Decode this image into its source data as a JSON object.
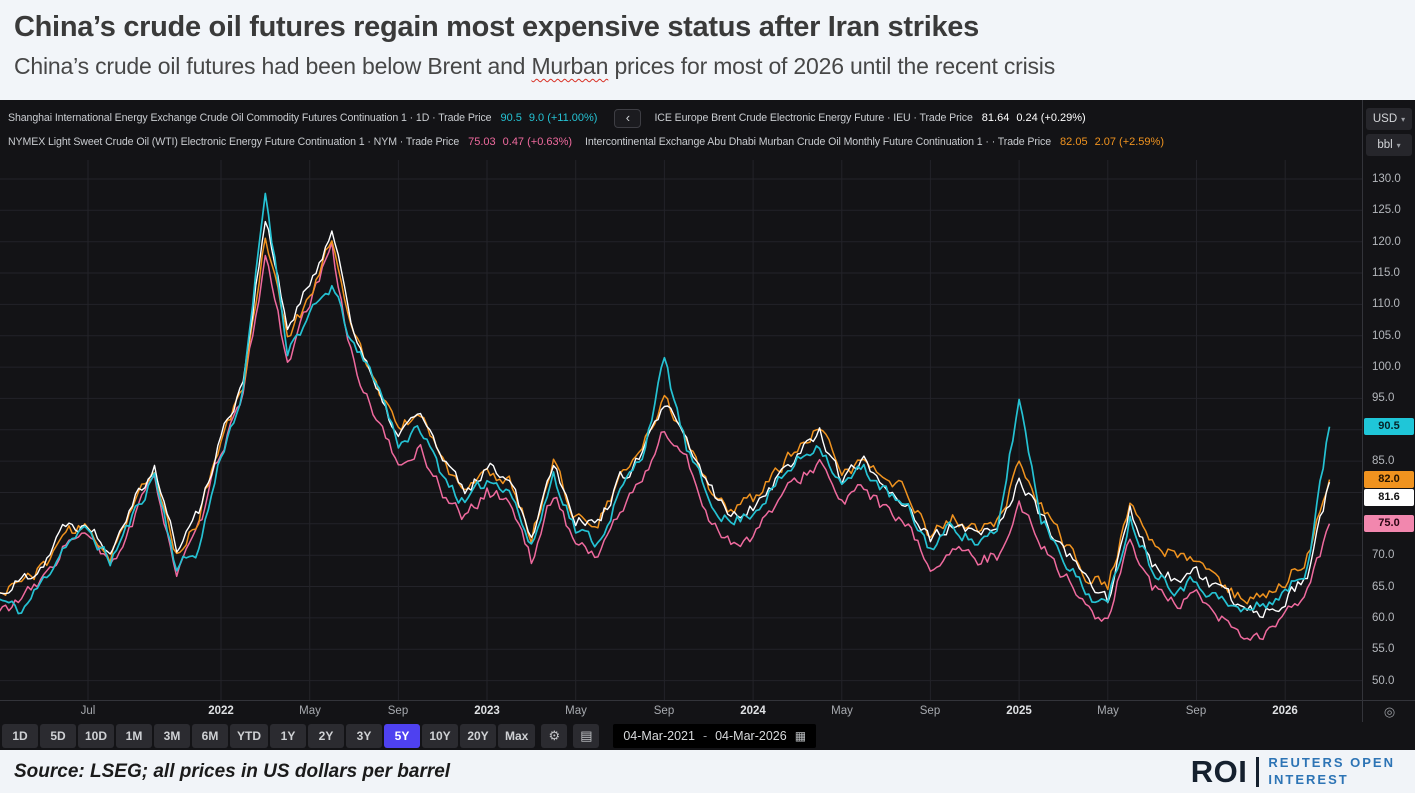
{
  "header": {
    "title": "China’s crude oil futures regain most expensive status after Iran strikes",
    "subtitle_prefix": "China’s crude oil futures had been below Brent and ",
    "subtitle_murban": "Murban",
    "subtitle_suffix": " prices for most of 2026 until the recent crisis"
  },
  "legend": {
    "items": [
      {
        "description": "Shanghai International Energy Exchange Crude Oil Commodity Futures Continuation 1 · 1D · Trade Price",
        "price": "90.5",
        "change": "9.0 (+11.00%)"
      },
      {
        "description": "ICE Europe Brent Crude Electronic Energy Future · IEU · Trade Price",
        "price": "81.64",
        "change": "0.24 (+0.29%)"
      },
      {
        "description": "NYMEX Light Sweet Crude Oil (WTI) Electronic Energy Future Continuation 1 · NYM · Trade Price",
        "price": "75.03",
        "change": "0.47 (+0.63%)"
      },
      {
        "description": "Intercontinental Exchange Abu Dhabi Murban Crude Oil Monthly Future Continuation 1 · · Trade Price",
        "price": "82.05",
        "change": "2.07 (+2.59%)"
      }
    ]
  },
  "axis": {
    "currency": "USD",
    "unit": "bbl"
  },
  "icons": {
    "collapse": "‹",
    "dropdown": "▾",
    "gear": "⚙",
    "sheet": "▤",
    "target": "◎",
    "calendar": "▦"
  },
  "toolbar": {
    "ranges": [
      "1D",
      "5D",
      "10D",
      "1M",
      "3M",
      "6M",
      "YTD",
      "1Y",
      "2Y",
      "3Y",
      "5Y",
      "10Y",
      "20Y",
      "Max"
    ],
    "selected": "5Y",
    "selected_color": "#4e41f0",
    "date_from": "04-Mar-2021",
    "date_to": "04-Mar-2026"
  },
  "chart_data": {
    "type": "line",
    "title": "China’s crude oil futures regain most expensive status after Iran strikes",
    "xlabel": "",
    "ylabel": "USD per barrel",
    "grid": true,
    "legend_position": "top-left",
    "ylim": [
      50,
      132
    ],
    "x_range": [
      "04-Mar-2021",
      "04-Mar-2026"
    ],
    "x": [
      "2021-03",
      "2021-04",
      "2021-05",
      "2021-06",
      "2021-07",
      "2021-08",
      "2021-09",
      "2021-10",
      "2021-11",
      "2021-12",
      "2022-01",
      "2022-02",
      "2022-03",
      "2022-04",
      "2022-05",
      "2022-06",
      "2022-07",
      "2022-08",
      "2022-09",
      "2022-10",
      "2022-11",
      "2022-12",
      "2023-01",
      "2023-02",
      "2023-03",
      "2023-04",
      "2023-05",
      "2023-06",
      "2023-07",
      "2023-08",
      "2023-09",
      "2023-10",
      "2023-11",
      "2023-12",
      "2024-01",
      "2024-02",
      "2024-03",
      "2024-04",
      "2024-05",
      "2024-06",
      "2024-07",
      "2024-08",
      "2024-09",
      "2024-10",
      "2024-11",
      "2024-12",
      "2025-01",
      "2025-02",
      "2025-03",
      "2025-04",
      "2025-05",
      "2025-06",
      "2025-07",
      "2025-08",
      "2025-09",
      "2025-10",
      "2025-11",
      "2025-12",
      "2026-01",
      "2026-02",
      "2026-03"
    ],
    "series": [
      {
        "name": "Shanghai INE crude oil futures",
        "color": "#25c2d3",
        "last_price": 90.5,
        "values": [
          63,
          61,
          66,
          72,
          74,
          69,
          76,
          83,
          68,
          71,
          86,
          96,
          128,
          103,
          108,
          113,
          103,
          98,
          88,
          90,
          83,
          78,
          82,
          81,
          71,
          83,
          74,
          72,
          80,
          86,
          101,
          87,
          79,
          75,
          77,
          81,
          85,
          88,
          81,
          84,
          80,
          77,
          71,
          75,
          72,
          73,
          95,
          76,
          70,
          64,
          62,
          76,
          68,
          65,
          66,
          63,
          61,
          62,
          64,
          68,
          90.5
        ]
      },
      {
        "name": "ICE Brent crude",
        "color": "#ffffff",
        "last_price": 81.64,
        "values": [
          64,
          66,
          69,
          75,
          75,
          71,
          79,
          84,
          71,
          77,
          89,
          98,
          124,
          106,
          113,
          122,
          106,
          96,
          89,
          93,
          85,
          80,
          84,
          83,
          73,
          85,
          76,
          75,
          82,
          86,
          94,
          88,
          81,
          76,
          78,
          82,
          86,
          90,
          82,
          85,
          81,
          78,
          72,
          75,
          73,
          74,
          82,
          76,
          71,
          66,
          63,
          77,
          69,
          66,
          67,
          64,
          62,
          61,
          63,
          67,
          81.64
        ]
      },
      {
        "name": "NYMEX WTI crude",
        "color": "#ef6a9e",
        "last_price": 75.03,
        "values": [
          61,
          63,
          66,
          72,
          73,
          68,
          75,
          83,
          67,
          74,
          87,
          95,
          118,
          101,
          110,
          119,
          100,
          92,
          84,
          87,
          80,
          76,
          80,
          79,
          69,
          80,
          72,
          70,
          77,
          82,
          90,
          85,
          76,
          72,
          73,
          78,
          82,
          85,
          78,
          81,
          77,
          74,
          68,
          71,
          69,
          70,
          78,
          72,
          67,
          62,
          59,
          73,
          65,
          62,
          63,
          60,
          57,
          57,
          60,
          64,
          75.03
        ]
      },
      {
        "name": "ICE Abu Dhabi Murban crude",
        "color": "#f0931f",
        "last_price": 82.05,
        "values": [
          64,
          66,
          68,
          74,
          74,
          70,
          78,
          83,
          70,
          76,
          88,
          97,
          121,
          105,
          111,
          121,
          105,
          97,
          90,
          93,
          85,
          80,
          83,
          82,
          73,
          85,
          76,
          75,
          82,
          87,
          95,
          89,
          81,
          77,
          79,
          83,
          87,
          90,
          83,
          85,
          82,
          80,
          73,
          76,
          74,
          75,
          84,
          78,
          72,
          67,
          65,
          78,
          72,
          70,
          69,
          66,
          63,
          63,
          66,
          70,
          82.05
        ]
      }
    ],
    "y_ticks": [
      "130.0",
      "125.0",
      "120.0",
      "115.0",
      "110.0",
      "105.0",
      "100.0",
      "95.0",
      "90.0",
      "85.0",
      "80.0",
      "75.0",
      "70.0",
      "65.0",
      "60.0",
      "55.0",
      "50.0"
    ],
    "x_ticks": [
      {
        "i": 4,
        "label": "Jul",
        "bold": false
      },
      {
        "i": 10,
        "label": "2022",
        "bold": true
      },
      {
        "i": 14,
        "label": "May",
        "bold": false
      },
      {
        "i": 18,
        "label": "Sep",
        "bold": false
      },
      {
        "i": 22,
        "label": "2023",
        "bold": true
      },
      {
        "i": 26,
        "label": "May",
        "bold": false
      },
      {
        "i": 30,
        "label": "Sep",
        "bold": false
      },
      {
        "i": 34,
        "label": "2024",
        "bold": true
      },
      {
        "i": 38,
        "label": "May",
        "bold": false
      },
      {
        "i": 42,
        "label": "Sep",
        "bold": false
      },
      {
        "i": 46,
        "label": "2025",
        "bold": true
      },
      {
        "i": 50,
        "label": "May",
        "bold": false
      },
      {
        "i": 54,
        "label": "Sep",
        "bold": false
      },
      {
        "i": 58,
        "label": "2026",
        "bold": true
      }
    ],
    "axis_tags": [
      {
        "label": "90.5",
        "value": 90.5,
        "bg": "#1fc6d8",
        "text": "#062428"
      },
      {
        "label": "82.0",
        "value": 82.05,
        "bg": "#f0931f",
        "text": "#231300"
      },
      {
        "label": "81.6",
        "value": 81.64,
        "bg": "#ffffff",
        "text": "#111111"
      },
      {
        "label": "75.0",
        "value": 75.03,
        "bg": "#f287ae",
        "text": "#2a0614"
      }
    ]
  },
  "footer": {
    "source": "Source: LSEG; all prices in US dollars per barrel",
    "logo_abbr": "ROI",
    "logo_line1": "REUTERS OPEN",
    "logo_line2": "INTEREST",
    "logo_blue": "#2d74b5"
  }
}
